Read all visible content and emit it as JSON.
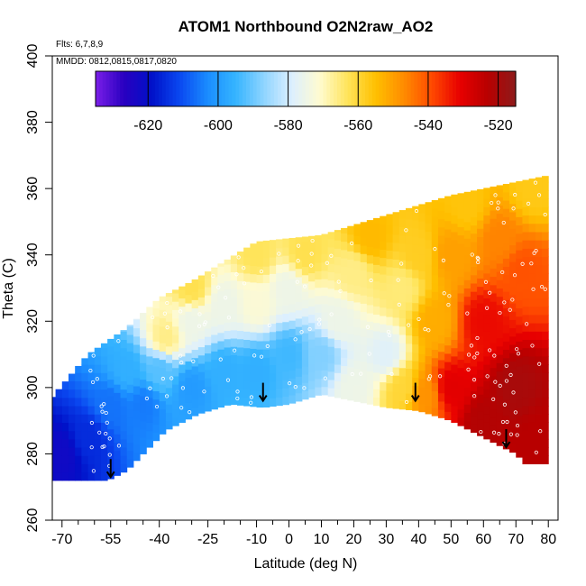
{
  "chart_data": {
    "type": "heatmap",
    "title": "ATOM1 Northbound O2N2raw_AO2",
    "annotations": {
      "flights": "Flts: 6,7,8,9",
      "dates": "MMDD: 0812,0815,0817,0820"
    },
    "xlabel": "Latitude (deg N)",
    "ylabel": "Theta (C)",
    "xlim": [
      -70,
      80
    ],
    "ylim": [
      260,
      400
    ],
    "xticks": [
      -70,
      -55,
      -40,
      -25,
      -10,
      0,
      10,
      20,
      30,
      40,
      50,
      60,
      70,
      80
    ],
    "xtick_labels": [
      "-70",
      "-55",
      "-40",
      "-25",
      "-10",
      "0",
      "10",
      "20",
      "30",
      "40",
      "50",
      "60",
      "70",
      "80"
    ],
    "xminor_ticks": [
      -65,
      -60,
      -50,
      -45,
      -35,
      -30,
      -20,
      -15,
      -5,
      5,
      15,
      25,
      35,
      45,
      55,
      65,
      75
    ],
    "yticks": [
      260,
      280,
      300,
      320,
      340,
      360,
      380,
      400
    ],
    "ytick_labels": [
      "260",
      "280",
      "300",
      "320",
      "340",
      "360",
      "380",
      "400"
    ],
    "colorbar": {
      "range": [
        -635,
        -515
      ],
      "ticks": [
        -620,
        -600,
        -580,
        -560,
        -540,
        -520
      ],
      "tick_labels": [
        "-620",
        "-600",
        "-580",
        "-560",
        "-540",
        "-520"
      ],
      "colors": [
        "#7b1fe8",
        "#2a00c0",
        "#0010c8",
        "#0a48f0",
        "#1a8cff",
        "#35b4ff",
        "#8ed4ff",
        "#dcefff",
        "#fffbd0",
        "#ffe45a",
        "#ffc000",
        "#ff8c00",
        "#ff4a00",
        "#e80000",
        "#b80000",
        "#8e1b1b"
      ]
    },
    "data_extent": {
      "lower_theta": [
        [
          -74,
          272
        ],
        [
          -56,
          272
        ],
        [
          -50,
          275
        ],
        [
          -38,
          287
        ],
        [
          -28,
          292
        ],
        [
          -18,
          295
        ],
        [
          -8,
          294
        ],
        [
          0,
          295
        ],
        [
          10,
          298
        ],
        [
          20,
          296
        ],
        [
          30,
          294
        ],
        [
          40,
          293
        ],
        [
          50,
          290
        ],
        [
          60,
          285
        ],
        [
          70,
          280
        ],
        [
          73,
          277
        ],
        [
          80,
          277
        ]
      ],
      "upper_theta": [
        [
          -74,
          296
        ],
        [
          -62,
          310
        ],
        [
          -50,
          318
        ],
        [
          -40,
          327
        ],
        [
          -30,
          332
        ],
        [
          -20,
          338
        ],
        [
          -10,
          344
        ],
        [
          0,
          345
        ],
        [
          10,
          346
        ],
        [
          20,
          349
        ],
        [
          30,
          352
        ],
        [
          40,
          355
        ],
        [
          50,
          358
        ],
        [
          60,
          360
        ],
        [
          70,
          362
        ],
        [
          80,
          364
        ]
      ]
    },
    "series": [
      {
        "values": [
          {
            "lat": -70,
            "theta": 280,
            "value": -622
          },
          {
            "lat": -62,
            "theta": 285,
            "value": -615
          },
          {
            "lat": -55,
            "theta": 295,
            "value": -606
          },
          {
            "lat": -50,
            "theta": 305,
            "value": -596
          },
          {
            "lat": -45,
            "theta": 295,
            "value": -605
          },
          {
            "lat": -40,
            "theta": 305,
            "value": -592
          },
          {
            "lat": -38,
            "theta": 315,
            "value": -566
          },
          {
            "lat": -30,
            "theta": 300,
            "value": -600
          },
          {
            "lat": -30,
            "theta": 320,
            "value": -575
          },
          {
            "lat": -30,
            "theta": 330,
            "value": -562
          },
          {
            "lat": -20,
            "theta": 305,
            "value": -596
          },
          {
            "lat": -20,
            "theta": 325,
            "value": -575
          },
          {
            "lat": -10,
            "theta": 305,
            "value": -596
          },
          {
            "lat": -10,
            "theta": 325,
            "value": -572
          },
          {
            "lat": -10,
            "theta": 340,
            "value": -563
          },
          {
            "lat": 0,
            "theta": 310,
            "value": -594
          },
          {
            "lat": 0,
            "theta": 330,
            "value": -575
          },
          {
            "lat": 5,
            "theta": 340,
            "value": -562
          },
          {
            "lat": 10,
            "theta": 310,
            "value": -588
          },
          {
            "lat": 15,
            "theta": 320,
            "value": -575
          },
          {
            "lat": 20,
            "theta": 300,
            "value": -575
          },
          {
            "lat": 20,
            "theta": 335,
            "value": -566
          },
          {
            "lat": 25,
            "theta": 345,
            "value": -554
          },
          {
            "lat": 30,
            "theta": 310,
            "value": -578
          },
          {
            "lat": 35,
            "theta": 330,
            "value": -565
          },
          {
            "lat": 35,
            "theta": 300,
            "value": -560
          },
          {
            "lat": 40,
            "theta": 340,
            "value": -558
          },
          {
            "lat": 42,
            "theta": 298,
            "value": -548
          },
          {
            "lat": 45,
            "theta": 320,
            "value": -552
          },
          {
            "lat": 50,
            "theta": 300,
            "value": -530
          },
          {
            "lat": 50,
            "theta": 340,
            "value": -550
          },
          {
            "lat": 55,
            "theta": 355,
            "value": -556
          },
          {
            "lat": 60,
            "theta": 290,
            "value": -522
          },
          {
            "lat": 60,
            "theta": 320,
            "value": -532
          },
          {
            "lat": 65,
            "theta": 345,
            "value": -546
          },
          {
            "lat": 70,
            "theta": 300,
            "value": -520
          },
          {
            "lat": 72,
            "theta": 335,
            "value": -540
          },
          {
            "lat": 75,
            "theta": 360,
            "value": -557
          },
          {
            "lat": 77,
            "theta": 285,
            "value": -523
          }
        ]
      }
    ],
    "markers": {
      "arrow_latitudes": [
        -55,
        -8,
        39,
        67
      ],
      "arrow_thetas": [
        273,
        296,
        296,
        282
      ]
    },
    "grid": false,
    "legend": "colorbar top"
  }
}
